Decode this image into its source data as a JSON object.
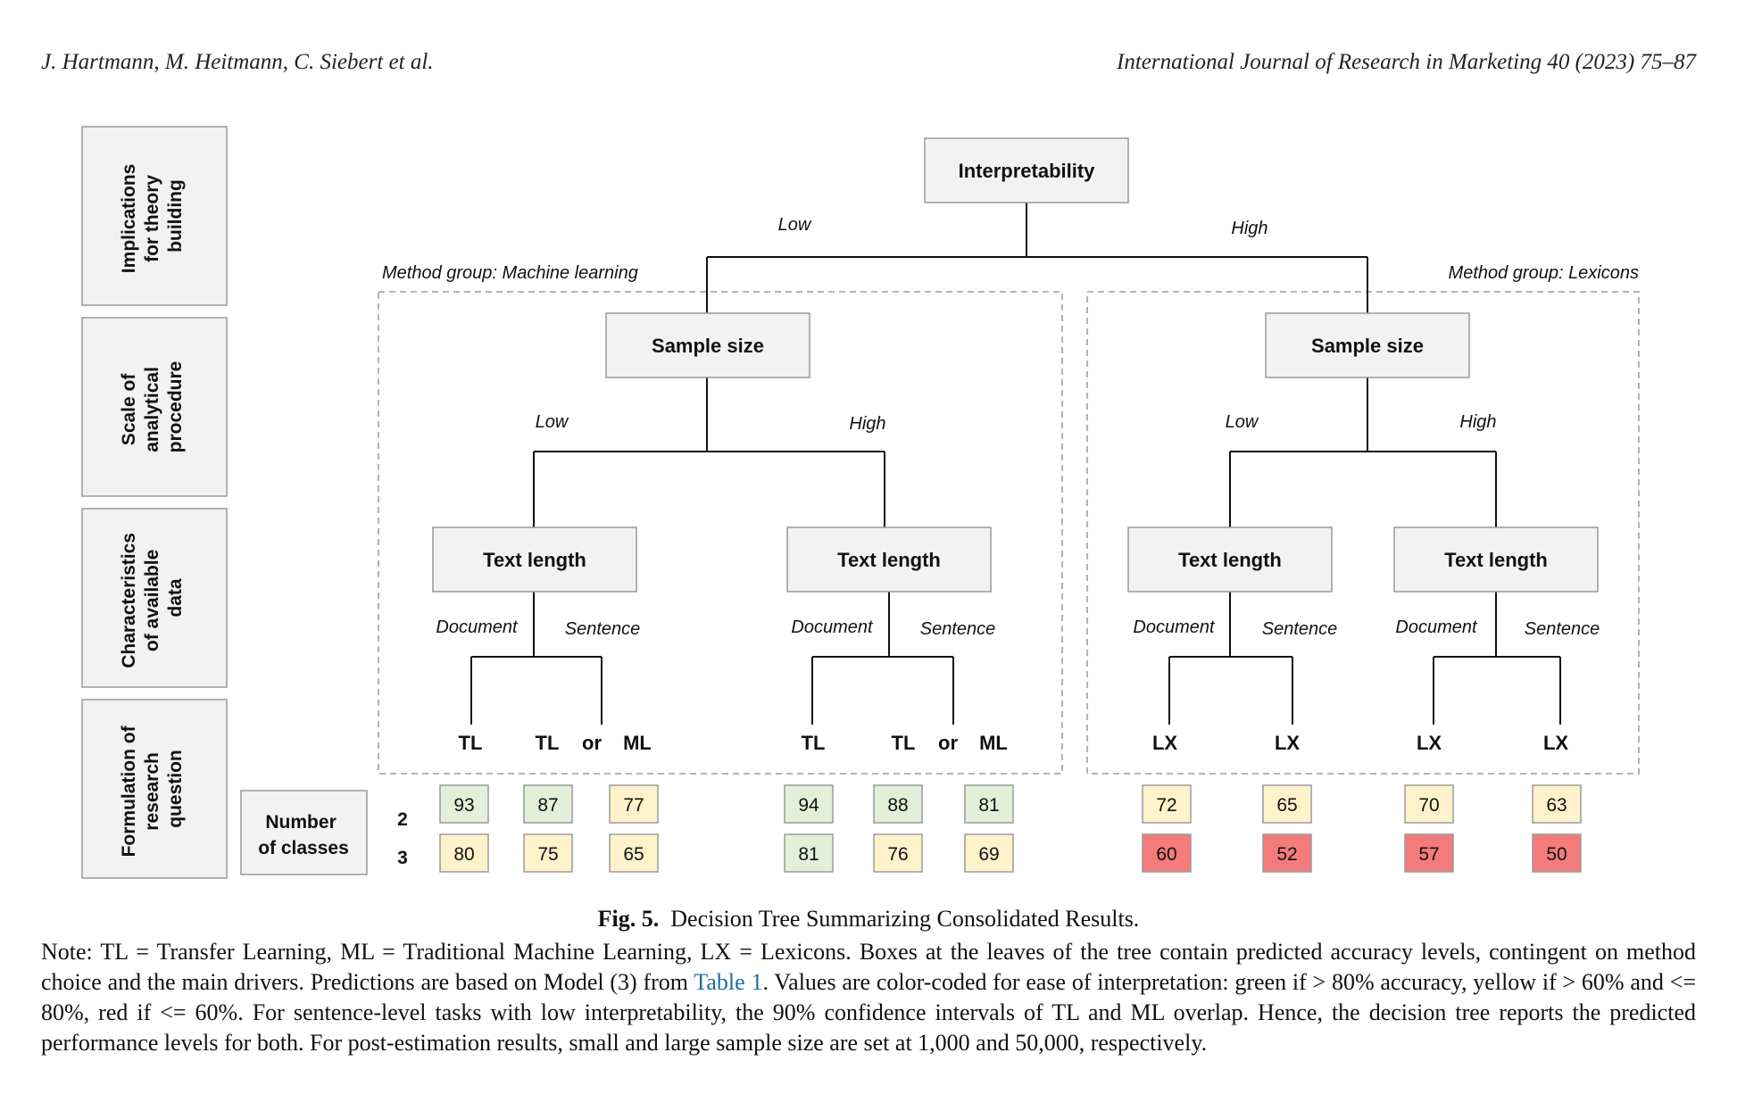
{
  "header": {
    "authors": "J. Hartmann, M. Heitmann, C. Siebert et al.",
    "journal": "International Journal of Research in Marketing 40 (2023) 75–87"
  },
  "figure": {
    "side_labels": [
      [
        "Implications",
        "for theory",
        "building"
      ],
      [
        "Scale of",
        "analytical",
        "procedure"
      ],
      [
        "Characteristics",
        "of available",
        "data"
      ],
      [
        "Formulation of",
        "research",
        "question"
      ]
    ],
    "root": "Interpretability",
    "root_branches": {
      "low": "Low",
      "high": "High"
    },
    "groups": {
      "ml": "Method group: Machine learning",
      "lx": "Method group: Lexicons"
    },
    "sample_size": "Sample size",
    "branch_low": "Low",
    "branch_high": "High",
    "text_length": "Text length",
    "branch_document": "Document",
    "branch_sentence": "Sentence",
    "leaf_tl": "TL",
    "leaf_or": "or",
    "leaf_ml": "ML",
    "leaf_lx": "LX",
    "classes_label": [
      "Number",
      "of classes"
    ],
    "class_rows": [
      "2",
      "3"
    ],
    "scores": {
      "row2": [
        93,
        87,
        77,
        94,
        88,
        81,
        72,
        65,
        70,
        63
      ],
      "row3": [
        80,
        75,
        65,
        81,
        76,
        69,
        60,
        52,
        57,
        50
      ]
    },
    "colors": {
      "green": "#e2efd9",
      "yellow": "#fef2cb",
      "red": "#f47b7b",
      "box": "#f2f2f2"
    }
  },
  "caption": {
    "label": "Fig. 5.",
    "text": "Decision Tree Summarizing Consolidated Results."
  },
  "note": {
    "part1": "Note: TL = Transfer Learning, ML = Traditional Machine Learning, LX = Lexicons. Boxes at the leaves of the tree contain predicted accuracy levels, contingent on method choice and the main drivers. Predictions are based on Model (3) from ",
    "link": "Table 1",
    "part2": ". Values are color-coded for ease of interpretation: green if > 80% accuracy, yellow if > 60% and <= 80%, red if <= 60%. For sentence-level tasks with low interpretability, the 90% confidence intervals of TL and ML overlap. Hence, the decision tree reports the predicted performance levels for both. For post-estimation results, small and large sample size are set at 1,000 and 50,000, respectively."
  }
}
